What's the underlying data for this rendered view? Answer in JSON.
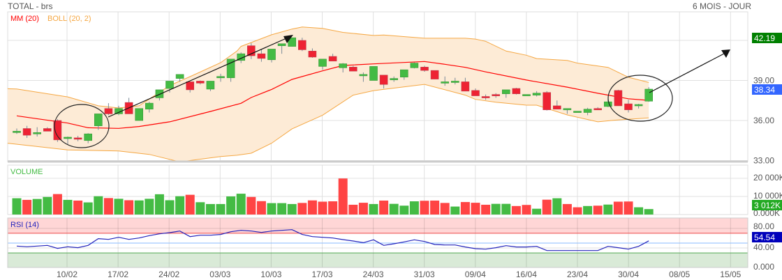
{
  "header": {
    "title": "TOTAL - brs",
    "period": "6 MOIS - JOUR"
  },
  "chart_data": [
    {
      "type": "candlestick",
      "legend": [
        {
          "name": "MM (20)",
          "color": "#ff0000"
        },
        {
          "name": "BOLL (20, 2)",
          "color": "#f5a742"
        }
      ],
      "ylim": [
        33,
        43.3
      ],
      "y_ticks": [
        "42.19",
        "39.00",
        "36.00",
        "33.00"
      ],
      "y_tick_values": [
        39,
        36,
        33
      ],
      "last_high_label": "42.19",
      "last_price_label": "38.34",
      "colors": {
        "up": "#44bb44",
        "down": "#ee2233",
        "mm": "#ff0000",
        "band": "#f5a742",
        "band_fill": "#fdebd6",
        "high_badge": "#008000",
        "price_badge": "#3366ff"
      },
      "candles": [
        [
          35.2,
          35.4,
          35.0,
          35.2
        ],
        [
          35.4,
          35.6,
          34.7,
          34.9
        ],
        [
          35.1,
          35.5,
          34.8,
          35.1
        ],
        [
          35.4,
          35.5,
          35.2,
          35.2
        ],
        [
          36.0,
          36.1,
          34.4,
          34.55
        ],
        [
          34.75,
          34.8,
          34.2,
          34.75
        ],
        [
          34.7,
          34.85,
          34.45,
          34.6
        ],
        [
          34.5,
          35.05,
          34.3,
          35.0
        ],
        [
          35.6,
          36.5,
          35.3,
          36.5
        ],
        [
          36.9,
          37.3,
          36.4,
          36.5
        ],
        [
          36.5,
          37.1,
          36.4,
          36.9
        ],
        [
          37.35,
          37.7,
          36.5,
          36.5
        ],
        [
          36.0,
          36.9,
          36.0,
          36.9
        ],
        [
          36.85,
          37.4,
          36.6,
          37.3
        ],
        [
          37.7,
          38.3,
          37.5,
          38.3
        ],
        [
          38.4,
          38.95,
          38.1,
          38.95
        ],
        [
          39.15,
          39.45,
          38.9,
          39.45
        ],
        [
          38.9,
          38.9,
          38.1,
          38.3
        ],
        [
          38.95,
          39.0,
          38.7,
          38.8
        ],
        [
          38.35,
          38.95,
          38.2,
          38.95
        ],
        [
          39.2,
          39.5,
          38.9,
          39.3
        ],
        [
          39.2,
          40.6,
          38.9,
          40.6
        ],
        [
          40.5,
          41.1,
          40.3,
          41.0
        ],
        [
          41.6,
          41.8,
          40.6,
          40.85
        ],
        [
          41.0,
          41.3,
          40.4,
          40.65
        ],
        [
          40.55,
          41.35,
          40.35,
          41.35
        ],
        [
          41.6,
          41.75,
          41.0,
          41.75
        ],
        [
          41.55,
          42.2,
          41.55,
          42.2
        ],
        [
          42.0,
          42.2,
          41.2,
          41.3
        ],
        [
          41.2,
          41.4,
          40.7,
          40.75
        ],
        [
          40.05,
          40.6,
          39.8,
          40.6
        ],
        [
          40.8,
          41.0,
          40.45,
          40.45
        ],
        [
          39.95,
          40.3,
          39.6,
          40.25
        ],
        [
          40.0,
          40.1,
          39.7,
          39.7
        ],
        [
          39.45,
          39.6,
          38.9,
          39.45
        ],
        [
          39.0,
          40.05,
          39.0,
          40.05
        ],
        [
          39.4,
          39.4,
          38.4,
          38.7
        ],
        [
          39.05,
          39.3,
          38.9,
          39.15
        ],
        [
          39.25,
          39.8,
          39.05,
          39.8
        ],
        [
          39.95,
          40.35,
          39.9,
          40.3
        ],
        [
          40.0,
          40.1,
          39.65,
          39.75
        ],
        [
          39.75,
          39.75,
          39.1,
          39.1
        ],
        [
          38.9,
          39.3,
          38.6,
          38.9
        ],
        [
          38.85,
          39.2,
          38.7,
          38.95
        ],
        [
          38.9,
          39.2,
          38.2,
          38.2
        ],
        [
          38.25,
          38.4,
          37.85,
          37.85
        ],
        [
          37.8,
          37.95,
          37.55,
          37.7
        ],
        [
          37.95,
          38.05,
          37.7,
          37.85
        ],
        [
          38.0,
          38.3,
          37.7,
          38.3
        ],
        [
          38.4,
          38.45,
          37.95,
          38.0
        ],
        [
          37.95,
          37.95,
          37.9,
          37.95
        ],
        [
          37.9,
          38.2,
          37.8,
          38.05
        ],
        [
          38.1,
          38.2,
          36.75,
          36.8
        ],
        [
          37.1,
          37.5,
          36.85,
          36.85
        ],
        [
          36.9,
          36.9,
          36.5,
          36.9
        ],
        [
          36.6,
          36.7,
          36.6,
          36.7
        ],
        [
          36.6,
          36.95,
          36.4,
          36.85
        ],
        [
          36.9,
          37.0,
          36.8,
          36.8
        ],
        [
          37.05,
          37.6,
          37.0,
          37.4
        ],
        [
          38.25,
          38.3,
          37.1,
          37.1
        ],
        [
          37.25,
          37.55,
          36.6,
          36.8
        ],
        [
          37.1,
          37.25,
          36.9,
          37.2
        ],
        [
          37.45,
          38.5,
          37.4,
          38.35
        ]
      ],
      "candle_fields": [
        "open",
        "high",
        "low",
        "close"
      ],
      "mm_20": [
        [
          0,
          36.35
        ],
        [
          5,
          35.81
        ],
        [
          7,
          35.46
        ],
        [
          10,
          35.41
        ],
        [
          12,
          35.55
        ],
        [
          15,
          35.9
        ],
        [
          19,
          36.68
        ],
        [
          22,
          37.29
        ],
        [
          23,
          37.72
        ],
        [
          25,
          38.33
        ],
        [
          27,
          39.08
        ],
        [
          30,
          39.72
        ],
        [
          32,
          40.12
        ],
        [
          35,
          40.24
        ],
        [
          40,
          40.42
        ],
        [
          42,
          40.21
        ],
        [
          44,
          39.98
        ],
        [
          46,
          39.64
        ],
        [
          50,
          39.03
        ],
        [
          54,
          38.5
        ],
        [
          57,
          38.04
        ],
        [
          60,
          37.63
        ],
        [
          62,
          37.51
        ]
      ],
      "boll_upper": [
        [
          -0.9,
          38.38
        ],
        [
          0,
          38.36
        ],
        [
          5,
          37.77
        ],
        [
          8,
          37.1
        ],
        [
          10,
          36.94
        ],
        [
          12,
          37.1
        ],
        [
          15,
          38.62
        ],
        [
          17,
          39.29
        ],
        [
          20,
          40.33
        ],
        [
          21.6,
          41.2
        ],
        [
          22,
          41.55
        ],
        [
          25,
          42.42
        ],
        [
          27,
          42.85
        ],
        [
          28,
          43.0
        ],
        [
          30,
          42.9
        ],
        [
          32,
          42.6
        ],
        [
          35,
          42.37
        ],
        [
          36,
          42.4
        ],
        [
          40,
          42.16
        ],
        [
          44,
          42.16
        ],
        [
          45,
          42.1
        ],
        [
          46,
          41.93
        ],
        [
          48,
          41.2
        ],
        [
          50,
          40.89
        ],
        [
          51,
          40.64
        ],
        [
          54,
          40.5
        ],
        [
          55,
          40.3
        ],
        [
          58,
          39.98
        ],
        [
          60,
          39.24
        ],
        [
          62,
          38.85
        ]
      ],
      "boll_lower": [
        [
          -0.9,
          34.3
        ],
        [
          5,
          33.8
        ],
        [
          10,
          33.72
        ],
        [
          13,
          33.46
        ],
        [
          16,
          32.9
        ],
        [
          20,
          33.3
        ],
        [
          21.6,
          33.4
        ],
        [
          23,
          33.55
        ],
        [
          25,
          34.3
        ],
        [
          27,
          35.37
        ],
        [
          30,
          36.4
        ],
        [
          33,
          37.9
        ],
        [
          35,
          38.24
        ],
        [
          40,
          38.71
        ],
        [
          44,
          37.9
        ],
        [
          45,
          37.58
        ],
        [
          47,
          37.37
        ],
        [
          50,
          37.15
        ],
        [
          51,
          37.15
        ],
        [
          54,
          36.42
        ],
        [
          57,
          35.9
        ],
        [
          58.6,
          36.02
        ],
        [
          62,
          36.2
        ]
      ],
      "x_tick_labels": [
        "10/02",
        "17/02",
        "24/02",
        "03/03",
        "10/03",
        "17/03",
        "24/03",
        "31/03",
        "09/04",
        "16/04",
        "23/04",
        "30/04",
        "08/05",
        "15/05"
      ]
    },
    {
      "type": "bar",
      "title": "VOLUME",
      "unit": "K",
      "y_ticks": [
        "20 000K",
        "10 000K",
        "0.000K"
      ],
      "last_label": "3 012K",
      "ylim": [
        0,
        27000
      ],
      "values": [
        9000,
        8100,
        8600,
        9700,
        11300,
        8100,
        7700,
        6700,
        10100,
        9100,
        8700,
        7900,
        7800,
        8700,
        11200,
        7900,
        10100,
        10900,
        6800,
        5800,
        5800,
        10000,
        11500,
        9700,
        7400,
        6300,
        6300,
        5800,
        6400,
        7800,
        7100,
        7300,
        19900,
        5400,
        6500,
        5800,
        7700,
        5900,
        4900,
        7300,
        7600,
        7700,
        6400,
        4400,
        6900,
        6500,
        5400,
        5900,
        5900,
        4700,
        5300,
        3200,
        8200,
        9000,
        5800,
        4000,
        4700,
        4900,
        5500,
        7100,
        7200,
        4000,
        3012
      ],
      "directions": "GRGGRGRGGRGRGGGGGRGGGGGRRGGGRRRRRRRGRGGGRRRGRRRGGRRGRGRRGRGRRGG",
      "colors": {
        "up": "#44bb44",
        "down": "#ff4444",
        "badge": "#22aa22"
      }
    },
    {
      "type": "line",
      "title": "RSI (14)",
      "ylim": [
        0,
        100
      ],
      "y_ticks": [
        "80.00",
        "40.00",
        "0.000"
      ],
      "y_tick_values": [
        80,
        40,
        0
      ],
      "last_label": "54.54",
      "levels": {
        "overbought": 70,
        "mid": 50,
        "oversold": 30
      },
      "values": [
        43.9,
        42.5,
        43.9,
        45.3,
        39.2,
        42.5,
        40.6,
        45.3,
        59.0,
        57.5,
        61.8,
        57.5,
        60.4,
        65.1,
        68.9,
        71.2,
        74.5,
        63.2,
        66.0,
        66.0,
        67.5,
        73.1,
        75.9,
        74.5,
        71.7,
        74.5,
        75.9,
        77.4,
        67.5,
        63.2,
        61.8,
        60.4,
        57.1,
        54.2,
        50.9,
        56.6,
        45.3,
        48.6,
        52.4,
        56.6,
        53.3,
        47.2,
        46.2,
        46.2,
        42.0,
        38.7,
        37.7,
        40.6,
        44.8,
        42.0,
        42.0,
        43.4,
        34.9,
        34.9,
        34.9,
        34.9,
        34.9,
        34.9,
        43.4,
        40.6,
        37.7,
        43.4,
        54.54
      ],
      "colors": {
        "line": "#2222bb",
        "overbought_zone": "#ffd6d6",
        "oversold_zone": "#d9ead7",
        "overbought_line": "#ee4444",
        "mid_line": "#88bbff",
        "oversold_line": "#55aa55",
        "badge": "#0000bb"
      }
    }
  ]
}
